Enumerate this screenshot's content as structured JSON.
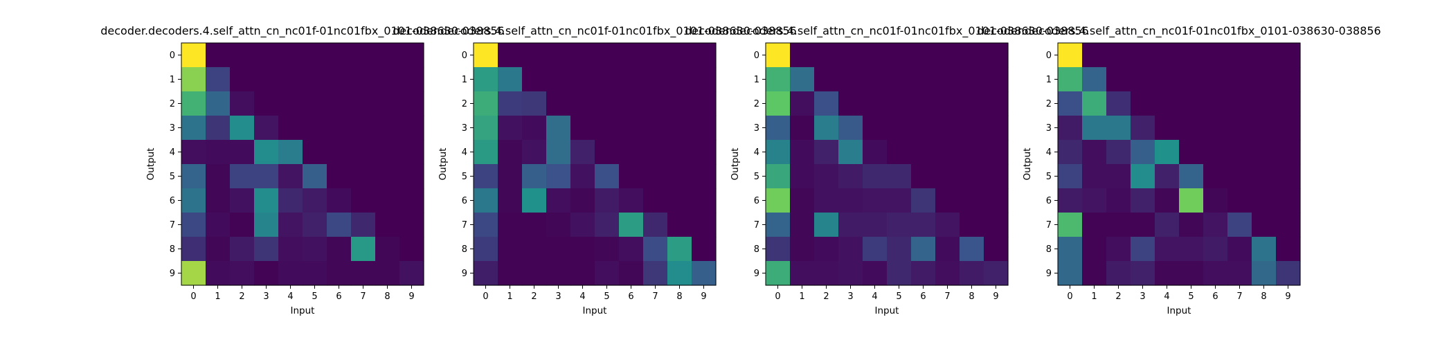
{
  "colormap": [
    "#440154",
    "#3b528b",
    "#21918c",
    "#5ec962",
    "#fde725"
  ],
  "chart_data": [
    {
      "type": "heatmap",
      "title": "decoder.decoders.4.self_attn_cn_nc01f-01nc01fbx_0101-038630-038856",
      "xlabel": "Input",
      "ylabel": "Output",
      "x_ticks": [
        "0",
        "1",
        "2",
        "3",
        "4",
        "5",
        "6",
        "7",
        "8",
        "9"
      ],
      "y_ticks": [
        "0",
        "1",
        "2",
        "3",
        "4",
        "5",
        "6",
        "7",
        "8",
        "9"
      ],
      "value_range": [
        0,
        1
      ],
      "matrix": [
        [
          1.0,
          0.0,
          0.0,
          0.0,
          0.0,
          0.0,
          0.0,
          0.0,
          0.0,
          0.0
        ],
        [
          0.82,
          0.2,
          0.0,
          0.0,
          0.0,
          0.0,
          0.0,
          0.0,
          0.0,
          0.0
        ],
        [
          0.64,
          0.33,
          0.04,
          0.0,
          0.0,
          0.0,
          0.0,
          0.0,
          0.0,
          0.0
        ],
        [
          0.38,
          0.16,
          0.48,
          0.06,
          0.0,
          0.0,
          0.0,
          0.0,
          0.0,
          0.0
        ],
        [
          0.04,
          0.03,
          0.03,
          0.48,
          0.42,
          0.0,
          0.0,
          0.0,
          0.0,
          0.0
        ],
        [
          0.32,
          0.02,
          0.2,
          0.2,
          0.06,
          0.3,
          0.0,
          0.0,
          0.0,
          0.0
        ],
        [
          0.38,
          0.02,
          0.05,
          0.48,
          0.12,
          0.08,
          0.03,
          0.0,
          0.0,
          0.0
        ],
        [
          0.22,
          0.03,
          0.01,
          0.45,
          0.06,
          0.1,
          0.22,
          0.12,
          0.0,
          0.0
        ],
        [
          0.14,
          0.02,
          0.08,
          0.16,
          0.04,
          0.05,
          0.02,
          0.53,
          0.02,
          0.0
        ],
        [
          0.86,
          0.03,
          0.04,
          0.01,
          0.03,
          0.03,
          0.02,
          0.02,
          0.02,
          0.05
        ]
      ]
    },
    {
      "type": "heatmap",
      "title": "decoder.decoders.4.self_attn_cn_nc01f-01nc01fbx_0101-038630-038856",
      "xlabel": "Input",
      "ylabel": "Output",
      "x_ticks": [
        "0",
        "1",
        "2",
        "3",
        "4",
        "5",
        "6",
        "7",
        "8",
        "9"
      ],
      "y_ticks": [
        "0",
        "1",
        "2",
        "3",
        "4",
        "5",
        "6",
        "7",
        "8",
        "9"
      ],
      "value_range": [
        0,
        1
      ],
      "matrix": [
        [
          1.0,
          0.0,
          0.0,
          0.0,
          0.0,
          0.0,
          0.0,
          0.0,
          0.0,
          0.0
        ],
        [
          0.55,
          0.4,
          0.0,
          0.0,
          0.0,
          0.0,
          0.0,
          0.0,
          0.0,
          0.0
        ],
        [
          0.62,
          0.18,
          0.17,
          0.0,
          0.0,
          0.0,
          0.0,
          0.0,
          0.0,
          0.0
        ],
        [
          0.58,
          0.05,
          0.03,
          0.36,
          0.0,
          0.0,
          0.0,
          0.0,
          0.0,
          0.0
        ],
        [
          0.54,
          0.02,
          0.05,
          0.36,
          0.1,
          0.0,
          0.0,
          0.0,
          0.0,
          0.0
        ],
        [
          0.2,
          0.02,
          0.3,
          0.25,
          0.05,
          0.24,
          0.0,
          0.0,
          0.0,
          0.0
        ],
        [
          0.4,
          0.02,
          0.5,
          0.04,
          0.02,
          0.08,
          0.04,
          0.0,
          0.0,
          0.0
        ],
        [
          0.22,
          0.01,
          0.01,
          0.02,
          0.05,
          0.1,
          0.55,
          0.12,
          0.0,
          0.0
        ],
        [
          0.18,
          0.01,
          0.01,
          0.01,
          0.01,
          0.02,
          0.04,
          0.23,
          0.55,
          0.0
        ],
        [
          0.09,
          0.01,
          0.01,
          0.01,
          0.01,
          0.04,
          0.02,
          0.17,
          0.48,
          0.3
        ]
      ]
    },
    {
      "type": "heatmap",
      "title": "decoder.decoders.4.self_attn_cn_nc01f-01nc01fbx_0101-038630-038856",
      "xlabel": "Input",
      "ylabel": "Output",
      "x_ticks": [
        "0",
        "1",
        "2",
        "3",
        "4",
        "5",
        "6",
        "7",
        "8",
        "9"
      ],
      "y_ticks": [
        "0",
        "1",
        "2",
        "3",
        "4",
        "5",
        "6",
        "7",
        "8",
        "9"
      ],
      "value_range": [
        0,
        1
      ],
      "matrix": [
        [
          1.0,
          0.0,
          0.0,
          0.0,
          0.0,
          0.0,
          0.0,
          0.0,
          0.0,
          0.0
        ],
        [
          0.64,
          0.36,
          0.0,
          0.0,
          0.0,
          0.0,
          0.0,
          0.0,
          0.0,
          0.0
        ],
        [
          0.74,
          0.04,
          0.24,
          0.0,
          0.0,
          0.0,
          0.0,
          0.0,
          0.0,
          0.0
        ],
        [
          0.3,
          0.01,
          0.42,
          0.28,
          0.0,
          0.0,
          0.0,
          0.0,
          0.0,
          0.0
        ],
        [
          0.44,
          0.03,
          0.1,
          0.42,
          0.03,
          0.0,
          0.0,
          0.0,
          0.0,
          0.0
        ],
        [
          0.6,
          0.03,
          0.05,
          0.08,
          0.12,
          0.12,
          0.0,
          0.0,
          0.0,
          0.0
        ],
        [
          0.78,
          0.02,
          0.05,
          0.05,
          0.06,
          0.06,
          0.16,
          0.0,
          0.0,
          0.0
        ],
        [
          0.32,
          0.02,
          0.45,
          0.08,
          0.08,
          0.1,
          0.1,
          0.06,
          0.0,
          0.0
        ],
        [
          0.16,
          0.02,
          0.03,
          0.05,
          0.18,
          0.12,
          0.32,
          0.03,
          0.26,
          0.0
        ],
        [
          0.62,
          0.04,
          0.04,
          0.05,
          0.03,
          0.12,
          0.08,
          0.04,
          0.08,
          0.1
        ]
      ]
    },
    {
      "type": "heatmap",
      "title": "decoder.decoders.4.self_attn_cn_nc01f-01nc01fbx_0101-038630-038856",
      "xlabel": "Input",
      "ylabel": "Output",
      "x_ticks": [
        "0",
        "1",
        "2",
        "3",
        "4",
        "5",
        "6",
        "7",
        "8",
        "9"
      ],
      "y_ticks": [
        "0",
        "1",
        "2",
        "3",
        "4",
        "5",
        "6",
        "7",
        "8",
        "9"
      ],
      "value_range": [
        0,
        1
      ],
      "matrix": [
        [
          1.0,
          0.0,
          0.0,
          0.0,
          0.0,
          0.0,
          0.0,
          0.0,
          0.0,
          0.0
        ],
        [
          0.64,
          0.32,
          0.0,
          0.0,
          0.0,
          0.0,
          0.0,
          0.0,
          0.0,
          0.0
        ],
        [
          0.24,
          0.62,
          0.14,
          0.0,
          0.0,
          0.0,
          0.0,
          0.0,
          0.0,
          0.0
        ],
        [
          0.08,
          0.4,
          0.4,
          0.1,
          0.0,
          0.0,
          0.0,
          0.0,
          0.0,
          0.0
        ],
        [
          0.12,
          0.04,
          0.12,
          0.3,
          0.5,
          0.0,
          0.0,
          0.0,
          0.0,
          0.0
        ],
        [
          0.2,
          0.04,
          0.04,
          0.48,
          0.1,
          0.32,
          0.0,
          0.0,
          0.0,
          0.0
        ],
        [
          0.08,
          0.06,
          0.03,
          0.1,
          0.02,
          0.78,
          0.02,
          0.0,
          0.0,
          0.0
        ],
        [
          0.68,
          0.01,
          0.01,
          0.01,
          0.1,
          0.02,
          0.06,
          0.2,
          0.0,
          0.0
        ],
        [
          0.34,
          0.01,
          0.04,
          0.2,
          0.06,
          0.06,
          0.08,
          0.03,
          0.38,
          0.0
        ],
        [
          0.34,
          0.01,
          0.08,
          0.1,
          0.02,
          0.02,
          0.04,
          0.04,
          0.34,
          0.16
        ]
      ]
    }
  ]
}
